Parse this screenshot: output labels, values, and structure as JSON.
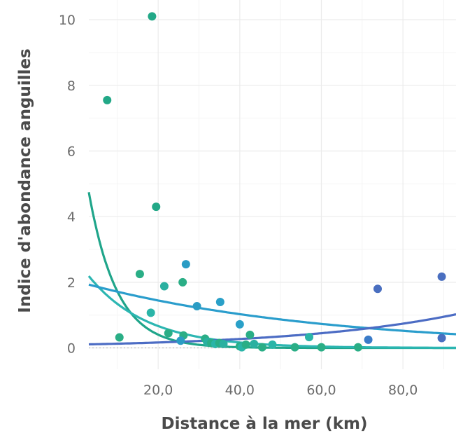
{
  "chart_data": {
    "type": "scatter",
    "title": "",
    "xlabel": "Distance à la mer (km)",
    "ylabel": "Indice d'abondance anguilles",
    "xlim": [
      3,
      93
    ],
    "ylim": [
      -0.65,
      10.6
    ],
    "xticks": [
      {
        "value": 20,
        "label": "20,0"
      },
      {
        "value": 40,
        "label": "40,0"
      },
      {
        "value": 60,
        "label": "60,0"
      },
      {
        "value": 80,
        "label": "80,0"
      }
    ],
    "yticks": [
      {
        "value": 0,
        "label": "0"
      },
      {
        "value": 2,
        "label": "2"
      },
      {
        "value": 4,
        "label": "4"
      },
      {
        "value": 6,
        "label": "6"
      },
      {
        "value": 8,
        "label": "8"
      },
      {
        "value": 10,
        "label": "10"
      }
    ],
    "grid": true,
    "legend": "none",
    "points": [
      {
        "x": 18.5,
        "y": 10.1,
        "color": "#22a887"
      },
      {
        "x": 7.5,
        "y": 7.55,
        "color": "#22a887"
      },
      {
        "x": 19.5,
        "y": 4.3,
        "color": "#22a887"
      },
      {
        "x": 15.5,
        "y": 2.25,
        "color": "#2aae86"
      },
      {
        "x": 10.5,
        "y": 0.32,
        "color": "#2aae86"
      },
      {
        "x": 21.5,
        "y": 1.88,
        "color": "#2ab0a0"
      },
      {
        "x": 26.0,
        "y": 2.0,
        "color": "#2aae86"
      },
      {
        "x": 26.8,
        "y": 2.55,
        "color": "#2a9cc4"
      },
      {
        "x": 18.2,
        "y": 1.07,
        "color": "#2ab5a8"
      },
      {
        "x": 22.5,
        "y": 0.45,
        "color": "#2aae86"
      },
      {
        "x": 26.2,
        "y": 0.38,
        "color": "#2aae86"
      },
      {
        "x": 25.5,
        "y": 0.22,
        "color": "#2a9cc4"
      },
      {
        "x": 29.5,
        "y": 1.27,
        "color": "#2a9cc4"
      },
      {
        "x": 35.2,
        "y": 1.4,
        "color": "#2aa0c8"
      },
      {
        "x": 31.5,
        "y": 0.28,
        "color": "#2aae86"
      },
      {
        "x": 32.0,
        "y": 0.18,
        "color": "#2ab0a0"
      },
      {
        "x": 33.0,
        "y": 0.15,
        "color": "#2aae86"
      },
      {
        "x": 34.0,
        "y": 0.12,
        "color": "#2ab5a8"
      },
      {
        "x": 35.0,
        "y": 0.15,
        "color": "#2aae86"
      },
      {
        "x": 36.0,
        "y": 0.12,
        "color": "#2ab0a0"
      },
      {
        "x": 40.0,
        "y": 0.72,
        "color": "#2aa0c8"
      },
      {
        "x": 42.5,
        "y": 0.4,
        "color": "#2aae86"
      },
      {
        "x": 40.0,
        "y": 0.05,
        "color": "#2aae86"
      },
      {
        "x": 40.5,
        "y": 0.02,
        "color": "#2ab5a8"
      },
      {
        "x": 41.5,
        "y": 0.1,
        "color": "#2aae86"
      },
      {
        "x": 43.5,
        "y": 0.12,
        "color": "#2ab0a0"
      },
      {
        "x": 45.5,
        "y": 0.02,
        "color": "#2aae86"
      },
      {
        "x": 48.0,
        "y": 0.1,
        "color": "#2ab5a8"
      },
      {
        "x": 53.5,
        "y": 0.02,
        "color": "#2aae86"
      },
      {
        "x": 57.0,
        "y": 0.33,
        "color": "#2ab5a8"
      },
      {
        "x": 60.0,
        "y": 0.02,
        "color": "#2aae86"
      },
      {
        "x": 69.0,
        "y": 0.02,
        "color": "#2aae86"
      },
      {
        "x": 71.5,
        "y": 0.25,
        "color": "#3a7bc8"
      },
      {
        "x": 73.8,
        "y": 1.8,
        "color": "#4a6fc0"
      },
      {
        "x": 89.5,
        "y": 2.17,
        "color": "#4a6fc0"
      },
      {
        "x": 89.5,
        "y": 0.3,
        "color": "#4a6fc0"
      }
    ],
    "curves": [
      {
        "color": "#1fa58a",
        "a": 7.33,
        "b": -0.145,
        "c": 0
      },
      {
        "color": "#2cb6b2",
        "a": 2.7,
        "b": -0.07,
        "c": 0
      },
      {
        "color": "#2a9dcc",
        "a": 2.03,
        "b": -0.017,
        "c": 0
      },
      {
        "color": "#4c6cc4",
        "a": 0.1,
        "b": 0.025,
        "c": 0
      }
    ]
  }
}
